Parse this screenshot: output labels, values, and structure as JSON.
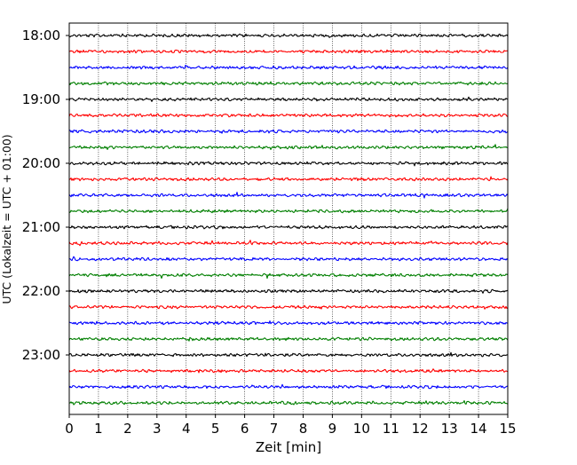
{
  "chart_data": {
    "type": "line",
    "title": "",
    "xlabel": "Zeit  [min]",
    "ylabel": "UTC (Lokalzeit = UTC + 01:00)",
    "xlim": [
      0,
      15
    ],
    "x_ticks": [
      0,
      1,
      2,
      3,
      4,
      5,
      6,
      7,
      8,
      9,
      10,
      11,
      12,
      13,
      14,
      15
    ],
    "y_axis": "time of day, increasing downward, one trace per 15 min",
    "y_tick_labels": [
      "18:00",
      "19:00",
      "20:00",
      "21:00",
      "22:00",
      "23:00"
    ],
    "grid": "vertical dotted lines at each minute",
    "legend": "none",
    "trace_colors": [
      "#000000",
      "#ff0000",
      "#0000ff",
      "#007f00"
    ],
    "series": [
      {
        "start": "18:00",
        "color": "#000000",
        "amplitude": 3
      },
      {
        "start": "18:15",
        "color": "#ff0000",
        "amplitude": 3
      },
      {
        "start": "18:30",
        "color": "#0000ff",
        "amplitude": 3
      },
      {
        "start": "18:45",
        "color": "#007f00",
        "amplitude": 3
      },
      {
        "start": "19:00",
        "color": "#000000",
        "amplitude": 3
      },
      {
        "start": "19:15",
        "color": "#ff0000",
        "amplitude": 3
      },
      {
        "start": "19:30",
        "color": "#0000ff",
        "amplitude": 3
      },
      {
        "start": "19:45",
        "color": "#007f00",
        "amplitude": 3
      },
      {
        "start": "20:00",
        "color": "#000000",
        "amplitude": 3
      },
      {
        "start": "20:15",
        "color": "#ff0000",
        "amplitude": 3
      },
      {
        "start": "20:30",
        "color": "#0000ff",
        "amplitude": 3
      },
      {
        "start": "20:45",
        "color": "#007f00",
        "amplitude": 3
      },
      {
        "start": "21:00",
        "color": "#000000",
        "amplitude": 3
      },
      {
        "start": "21:15",
        "color": "#ff0000",
        "amplitude": 3
      },
      {
        "start": "21:30",
        "color": "#0000ff",
        "amplitude": 3
      },
      {
        "start": "21:45",
        "color": "#007f00",
        "amplitude": 3
      },
      {
        "start": "22:00",
        "color": "#000000",
        "amplitude": 3
      },
      {
        "start": "22:15",
        "color": "#ff0000",
        "amplitude": 3
      },
      {
        "start": "22:30",
        "color": "#0000ff",
        "amplitude": 3
      },
      {
        "start": "22:45",
        "color": "#007f00",
        "amplitude": 3
      },
      {
        "start": "23:00",
        "color": "#000000",
        "amplitude": 3
      },
      {
        "start": "23:15",
        "color": "#ff0000",
        "amplitude": 3
      },
      {
        "start": "23:30",
        "color": "#0000ff",
        "amplitude": 3
      },
      {
        "start": "23:45",
        "color": "#007f00",
        "amplitude": 3
      }
    ]
  }
}
